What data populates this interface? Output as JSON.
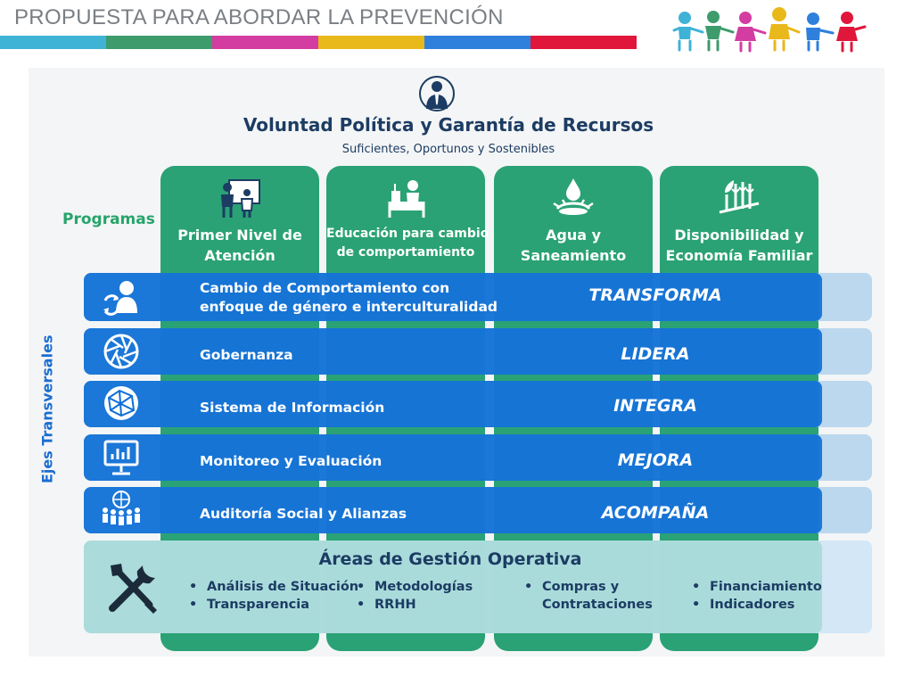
{
  "header": {
    "title": "PROPUESTA PARA ABORDAR LA PREVENCIÓN",
    "stripe_colors": [
      "#3fb3d6",
      "#3e9b6c",
      "#d33ca1",
      "#e9b81a",
      "#2f80dc",
      "#e0173a"
    ]
  },
  "diagram": {
    "title": "Voluntad Política y Garantía de Recursos",
    "subtitle": "Suficientes, Oportunos y Sostenibles",
    "programas_label": "Programas",
    "ejes_label": "Ejes Transversales",
    "programs": [
      {
        "label_line1": "Primer Nivel de",
        "label_line2": "Atención",
        "icon": "teacher-icon"
      },
      {
        "label_line1": "Educación para cambio",
        "label_line2": "de comportamiento",
        "icon": "student-icon"
      },
      {
        "label_line1": "Agua y",
        "label_line2": "Saneamiento",
        "icon": "water-drop-icon"
      },
      {
        "label_line1": "Disponibilidad y",
        "label_line2": "Economía Familiar",
        "icon": "crops-icon"
      }
    ],
    "axes": [
      {
        "label_line1": "Cambio de Comportamiento con",
        "label_line2": "enfoque de género e interculturalidad",
        "verb": "TRANSFORMA",
        "icon": "person-cycle-icon"
      },
      {
        "label_line1": "Gobernanza",
        "label_line2": "",
        "verb": "LIDERA",
        "icon": "aperture-icon"
      },
      {
        "label_line1": "Sistema de Información",
        "label_line2": "",
        "verb": "INTEGRA",
        "icon": "globe-network-icon"
      },
      {
        "label_line1": "Monitoreo y Evaluación",
        "label_line2": "",
        "verb": "MEJORA",
        "icon": "monitor-chart-icon"
      },
      {
        "label_line1": "Auditoría Social y Alianzas",
        "label_line2": "",
        "verb": "ACOMPAÑA",
        "icon": "people-globe-icon"
      }
    ],
    "areas": {
      "title": "Áreas de Gestión Operativa",
      "icon": "tools-icon",
      "columns": [
        [
          "Análisis de Situación",
          "Transparencia"
        ],
        [
          "Metodologías",
          "RRHH"
        ],
        [
          "Compras y",
          "Contrataciones"
        ],
        [
          "Financiamiento",
          "Indicadores"
        ]
      ]
    }
  },
  "colors": {
    "program_green": "#2aa275",
    "axis_blue": "#0f6fd6",
    "title_navy": "#1c3c63",
    "areas_teal": "#a9dbda"
  }
}
